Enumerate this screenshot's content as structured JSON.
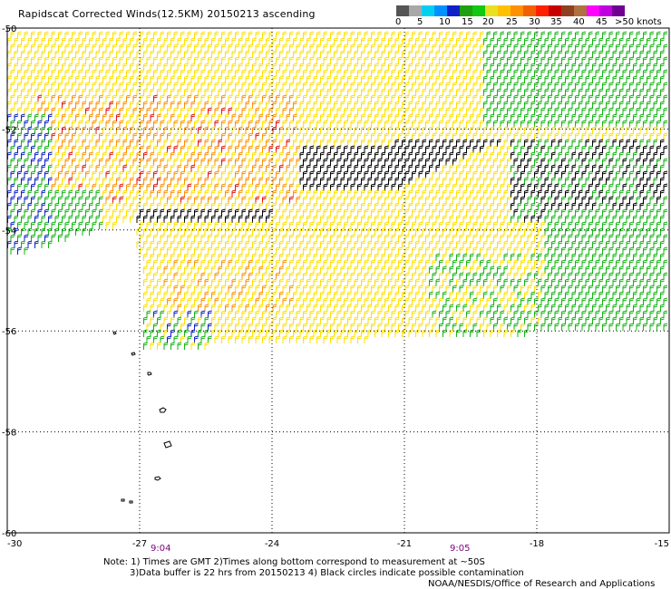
{
  "title": "Rapidscat Corrected Winds(12.5KM) 20150213 ascending",
  "colorbar": {
    "colors": [
      "#555555",
      "#a8a8a8",
      "#00d0f0",
      "#0090ff",
      "#1020c8",
      "#1fa010",
      "#12c812",
      "#e8e020",
      "#ffc000",
      "#ff9000",
      "#f06000",
      "#ff2000",
      "#c80000",
      "#904020",
      "#b07040",
      "#ff00ff",
      "#c000e0",
      "#700090"
    ],
    "labels": [
      "0",
      "5",
      "10",
      "15",
      "20",
      "25",
      "30",
      "35",
      "40",
      "45",
      ">50 knots"
    ]
  },
  "map": {
    "lon_labels": [
      "-30",
      "-27",
      "-24",
      "-21",
      "-18",
      "-15"
    ],
    "lat_labels": [
      "-50",
      "-52",
      "-54",
      "-56",
      "-58",
      "-60"
    ],
    "time_labels": [
      "9:04",
      "9:05"
    ],
    "speed_colors": {
      "calm": "#000000",
      "blue": "#1020c8",
      "green": "#14b414",
      "yellow": "#ffe000",
      "orange": "#ff9000",
      "red": "#e81010"
    }
  },
  "notes": [
    "Note: 1) Times are GMT 2)Times along bottom correspond to measurement at ~50S",
    "3)Data buffer is 22 hrs from 20150213 4) Black circles indicate possible contamination"
  ],
  "credit": "NOAA/NESDIS/Office of Research and Applications"
}
